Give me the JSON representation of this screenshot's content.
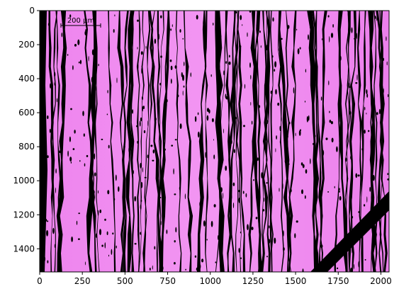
{
  "figure": {
    "xaxis": {
      "ticks": [
        "0",
        "250",
        "500",
        "750",
        "1000",
        "1250",
        "1500",
        "1750",
        "2000"
      ],
      "tick_values": [
        0,
        250,
        500,
        750,
        1000,
        1250,
        1500,
        1750,
        2000
      ],
      "range": [
        0,
        2048
      ]
    },
    "yaxis": {
      "ticks": [
        "0",
        "200",
        "400",
        "600",
        "800",
        "1000",
        "1200",
        "1400"
      ],
      "tick_values": [
        0,
        200,
        400,
        600,
        800,
        1000,
        1200,
        1400
      ],
      "range": [
        1536,
        0
      ],
      "inverted": true
    },
    "image": {
      "content": "micrograph",
      "colors": {
        "tissue": "#f08af0",
        "tissue_light": "#f7a6f7",
        "gap": "#000000"
      }
    },
    "scale_bar": {
      "label": "200 µm"
    }
  }
}
